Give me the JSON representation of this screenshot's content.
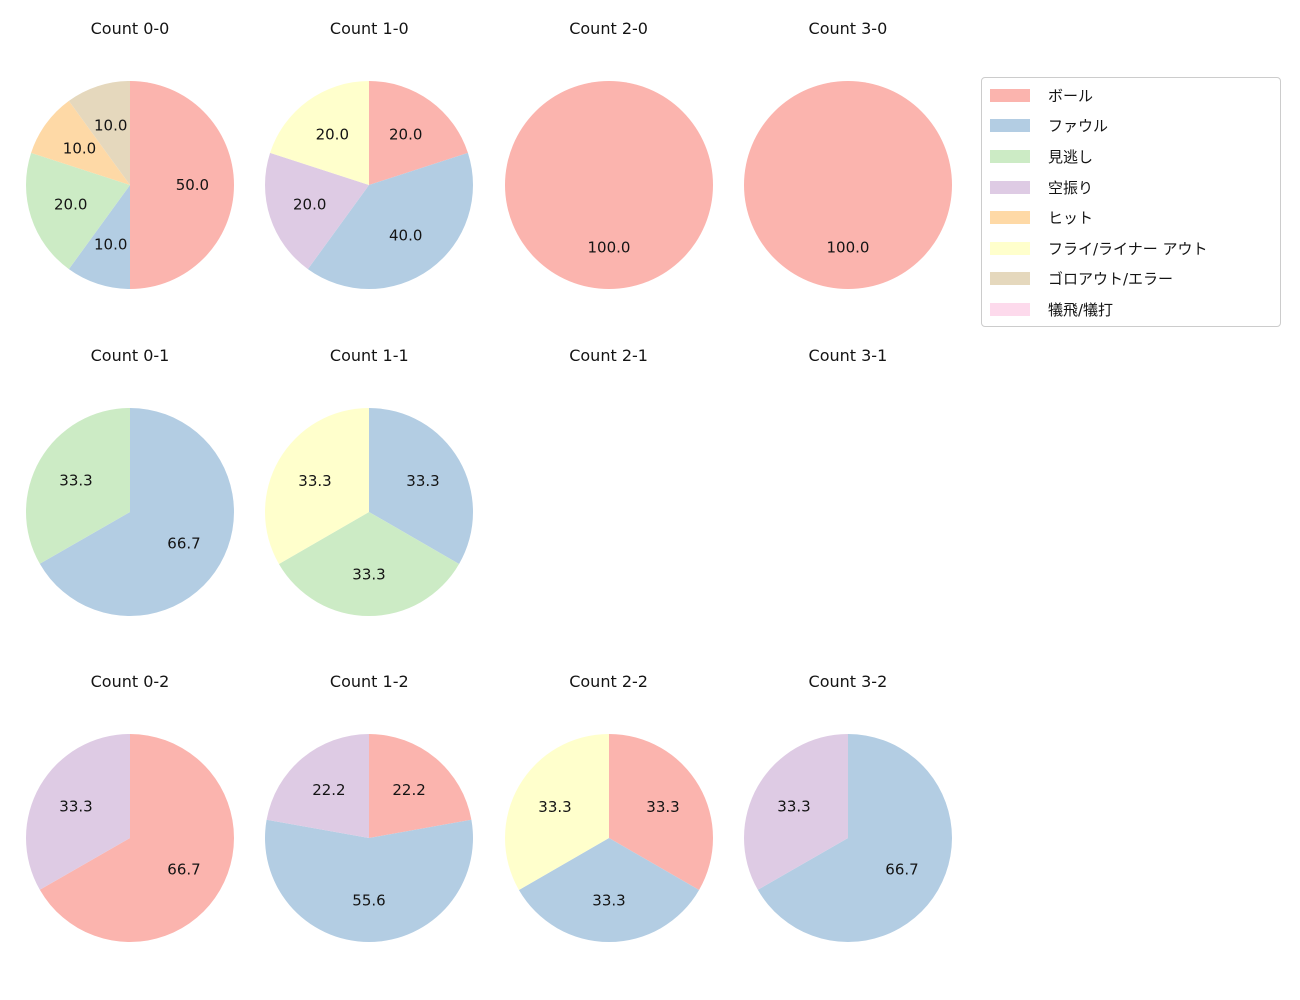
{
  "figure": {
    "background_color": "#ffffff",
    "text_color": "#141414"
  },
  "legend": {
    "position": "top-right",
    "border_color": "#cccccc",
    "items": [
      {
        "label": "ボール",
        "color": "#fbb4ae"
      },
      {
        "label": "ファウル",
        "color": "#b3cde3"
      },
      {
        "label": "見逃し",
        "color": "#ccebc5"
      },
      {
        "label": "空振り",
        "color": "#decbe4"
      },
      {
        "label": "ヒット",
        "color": "#fed9a6"
      },
      {
        "label": "フライ/ライナー アウト",
        "color": "#ffffcc"
      },
      {
        "label": "ゴロアウト/エラー",
        "color": "#e5d8bd"
      },
      {
        "label": "犠飛/犠打",
        "color": "#fddaec"
      }
    ]
  },
  "chart_data": [
    {
      "type": "pie",
      "title": "Count 0-0",
      "start_angle_deg": 90,
      "direction": "clockwise",
      "slices": [
        {
          "label": "ボール",
          "value": 50.0
        },
        {
          "label": "ファウル",
          "value": 10.0
        },
        {
          "label": "見逃し",
          "value": 20.0
        },
        {
          "label": "ヒット",
          "value": 10.0
        },
        {
          "label": "ゴロアウト/エラー",
          "value": 10.0
        }
      ]
    },
    {
      "type": "pie",
      "title": "Count 1-0",
      "start_angle_deg": 90,
      "direction": "clockwise",
      "slices": [
        {
          "label": "ボール",
          "value": 20.0
        },
        {
          "label": "ファウル",
          "value": 40.0
        },
        {
          "label": "空振り",
          "value": 20.0
        },
        {
          "label": "フライ/ライナー アウト",
          "value": 20.0
        }
      ]
    },
    {
      "type": "pie",
      "title": "Count 2-0",
      "start_angle_deg": 90,
      "direction": "clockwise",
      "slices": [
        {
          "label": "ボール",
          "value": 100.0
        }
      ]
    },
    {
      "type": "pie",
      "title": "Count 3-0",
      "start_angle_deg": 90,
      "direction": "clockwise",
      "slices": [
        {
          "label": "ボール",
          "value": 100.0
        }
      ]
    },
    {
      "type": "pie",
      "title": "Count 0-1",
      "start_angle_deg": 90,
      "direction": "clockwise",
      "slices": [
        {
          "label": "ファウル",
          "value": 66.7
        },
        {
          "label": "見逃し",
          "value": 33.3
        }
      ]
    },
    {
      "type": "pie",
      "title": "Count 1-1",
      "start_angle_deg": 90,
      "direction": "clockwise",
      "slices": [
        {
          "label": "ファウル",
          "value": 33.3
        },
        {
          "label": "見逃し",
          "value": 33.3
        },
        {
          "label": "フライ/ライナー アウト",
          "value": 33.3
        }
      ]
    },
    {
      "type": "pie",
      "title": "Count 2-1",
      "start_angle_deg": 90,
      "direction": "clockwise",
      "slices": []
    },
    {
      "type": "pie",
      "title": "Count 3-1",
      "start_angle_deg": 90,
      "direction": "clockwise",
      "slices": []
    },
    {
      "type": "pie",
      "title": "Count 0-2",
      "start_angle_deg": 90,
      "direction": "clockwise",
      "slices": [
        {
          "label": "ボール",
          "value": 66.7
        },
        {
          "label": "空振り",
          "value": 33.3
        }
      ]
    },
    {
      "type": "pie",
      "title": "Count 1-2",
      "start_angle_deg": 90,
      "direction": "clockwise",
      "slices": [
        {
          "label": "ボール",
          "value": 22.2
        },
        {
          "label": "ファウル",
          "value": 55.6
        },
        {
          "label": "空振り",
          "value": 22.2
        }
      ]
    },
    {
      "type": "pie",
      "title": "Count 2-2",
      "start_angle_deg": 90,
      "direction": "clockwise",
      "slices": [
        {
          "label": "ボール",
          "value": 33.3
        },
        {
          "label": "ファウル",
          "value": 33.3
        },
        {
          "label": "フライ/ライナー アウト",
          "value": 33.3
        }
      ]
    },
    {
      "type": "pie",
      "title": "Count 3-2",
      "start_angle_deg": 90,
      "direction": "clockwise",
      "slices": [
        {
          "label": "ファウル",
          "value": 66.7
        },
        {
          "label": "空振り",
          "value": 33.3
        }
      ]
    }
  ]
}
